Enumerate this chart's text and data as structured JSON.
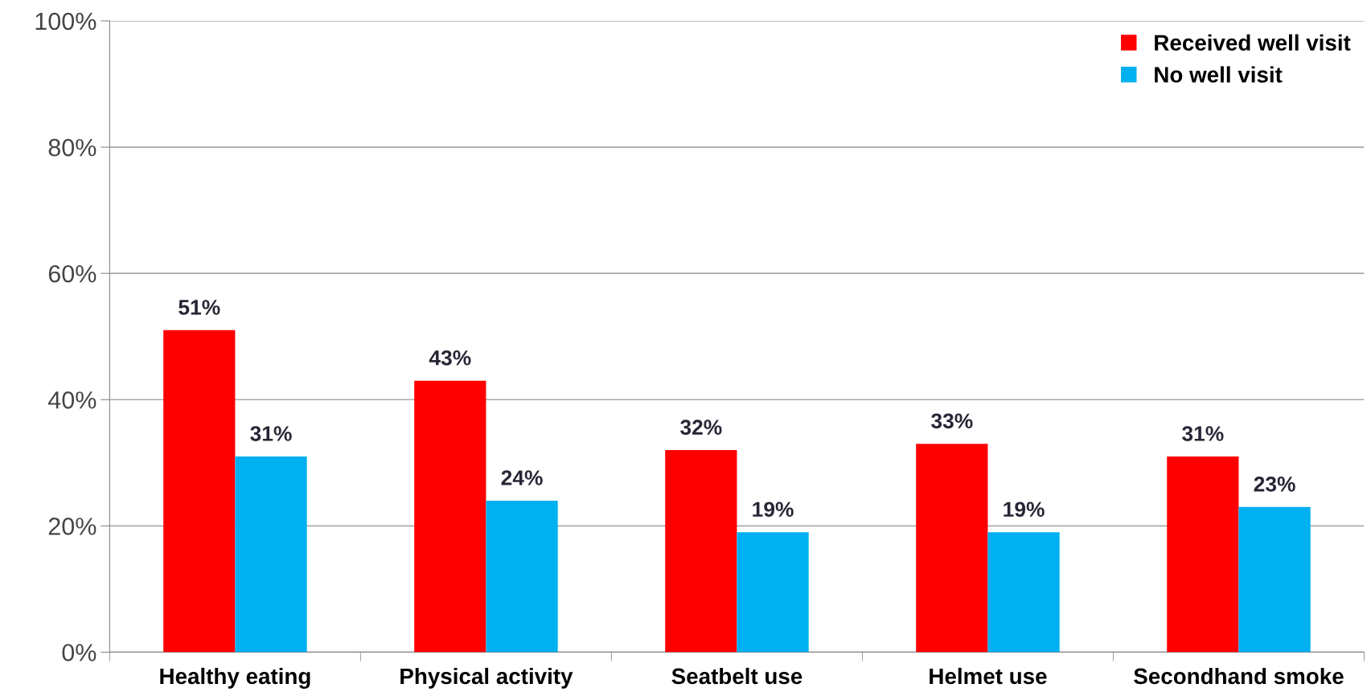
{
  "chart_data": {
    "type": "bar",
    "categories": [
      "Healthy eating",
      "Physical activity",
      "Seatbelt use",
      "Helmet use",
      "Secondhand smoke"
    ],
    "series": [
      {
        "name": "Received well visit",
        "color": "#ff0000",
        "values": [
          51,
          43,
          32,
          33,
          31
        ],
        "value_labels": [
          "51%",
          "43%",
          "32%",
          "33%",
          "31%"
        ]
      },
      {
        "name": "No well visit",
        "color": "#00b0f0",
        "values": [
          31,
          24,
          19,
          19,
          23
        ],
        "value_labels": [
          "31%",
          "24%",
          "19%",
          "19%",
          "23%"
        ]
      }
    ],
    "ylim": [
      0,
      100
    ],
    "yticks": [
      {
        "value": 0,
        "label": "0%"
      },
      {
        "value": 20,
        "label": "20%"
      },
      {
        "value": 40,
        "label": "40%"
      },
      {
        "value": 60,
        "label": "60%"
      },
      {
        "value": 80,
        "label": "80%"
      },
      {
        "value": 100,
        "label": "100%"
      }
    ],
    "grid": "y",
    "legend": "top right"
  }
}
